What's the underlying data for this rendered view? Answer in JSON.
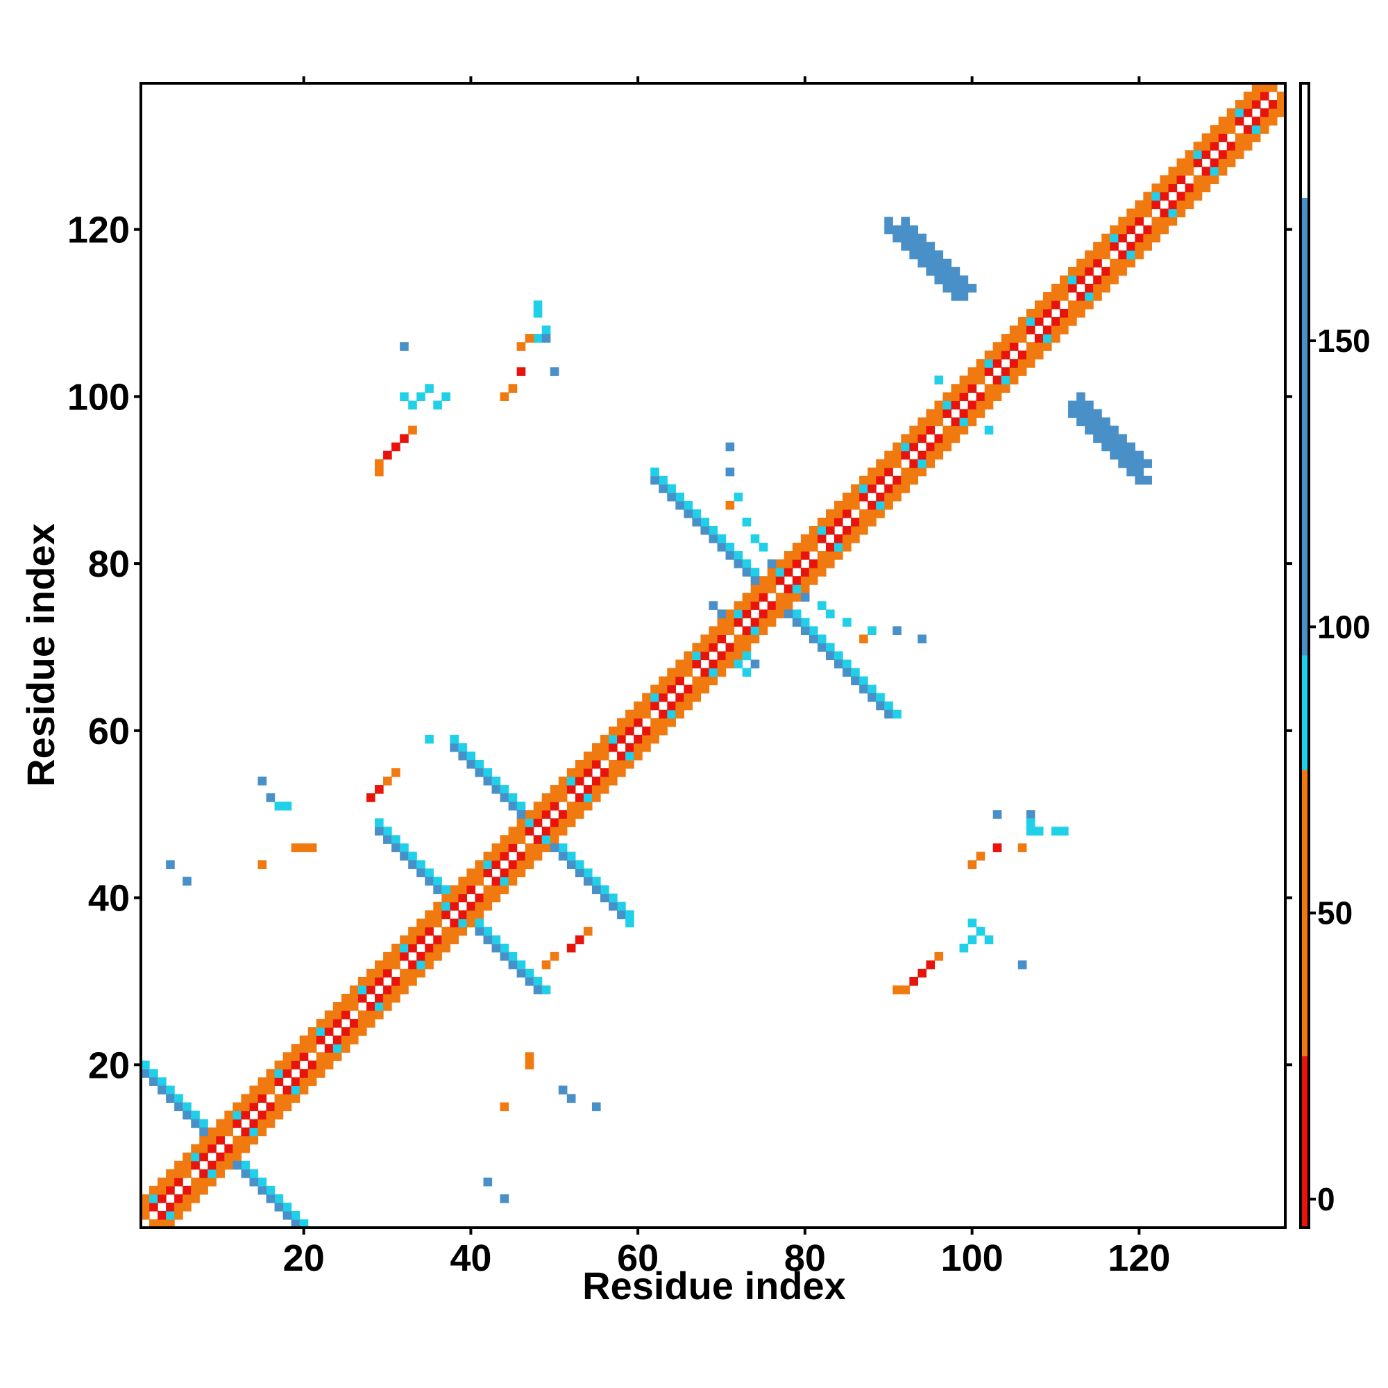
{
  "chart_data": {
    "type": "heatmap",
    "title": "",
    "xlabel": "Residue index",
    "ylabel": "Residue index",
    "xlim": [
      1,
      137
    ],
    "ylim": [
      1,
      137
    ],
    "x_ticks": [
      20,
      40,
      60,
      80,
      100,
      120
    ],
    "y_ticks": [
      20,
      40,
      60,
      80,
      100,
      120
    ],
    "grid": false,
    "colorbar": {
      "ticks": [
        0,
        50,
        100,
        150
      ],
      "range": [
        -5,
        195
      ],
      "bands": [
        {
          "from": -5,
          "to": 25,
          "color": "#e8140c"
        },
        {
          "from": 25,
          "to": 75,
          "color": "#f07a10"
        },
        {
          "from": 75,
          "to": 95,
          "color": "#20d0e8"
        },
        {
          "from": 95,
          "to": 175,
          "color": "#4a90c8"
        },
        {
          "from": 175,
          "to": 195,
          "color": "#ffffff"
        }
      ]
    },
    "diagonal": {
      "from": 1,
      "to": 137,
      "value": 180
    },
    "pattern_series": [
      {
        "kind": "diagonal-band",
        "x_range": [
          1,
          137
        ],
        "offsets": [
          1,
          2,
          3
        ],
        "values": [
          10,
          45,
          40
        ]
      },
      {
        "kind": "antiparallel",
        "x_range": [
          1,
          18
        ],
        "sum": 20,
        "value": 135
      },
      {
        "kind": "antiparallel",
        "x_range": [
          30,
          48
        ],
        "sum": 77,
        "value": 130
      },
      {
        "kind": "antiparallel",
        "x_range": [
          38,
          58
        ],
        "sum": 96,
        "value": 130
      },
      {
        "kind": "antiparallel",
        "x_range": [
          70,
          90
        ],
        "sum": 152,
        "value": 120
      },
      {
        "kind": "antiparallel",
        "x_range": [
          92,
          99
        ],
        "sum": 212,
        "value": 140
      },
      {
        "kind": "antiparallel",
        "x_range": [
          112,
          120
        ],
        "sum": 210,
        "value": 140
      }
    ],
    "points": [
      [
        42,
        6,
        150
      ],
      [
        44,
        4,
        150
      ],
      [
        44,
        15,
        40
      ],
      [
        47,
        20,
        45
      ],
      [
        47,
        21,
        45
      ],
      [
        51,
        17,
        140
      ],
      [
        52,
        16,
        140
      ],
      [
        55,
        15,
        150
      ],
      [
        29,
        91,
        50
      ],
      [
        29,
        92,
        50
      ],
      [
        30,
        93,
        20
      ],
      [
        31,
        94,
        20
      ],
      [
        32,
        95,
        10
      ],
      [
        33,
        96,
        40
      ],
      [
        32,
        100,
        90
      ],
      [
        33,
        99,
        85
      ],
      [
        34,
        100,
        90
      ],
      [
        35,
        101,
        90
      ],
      [
        36,
        99,
        90
      ],
      [
        37,
        100,
        85
      ],
      [
        32,
        106,
        150
      ],
      [
        44,
        100,
        40
      ],
      [
        45,
        101,
        40
      ],
      [
        46,
        103,
        10
      ],
      [
        46,
        106,
        45
      ],
      [
        48,
        107,
        90
      ],
      [
        49,
        108,
        90
      ],
      [
        48,
        110,
        90
      ],
      [
        48,
        111,
        90
      ],
      [
        49,
        107,
        150
      ],
      [
        50,
        103,
        150
      ],
      [
        47,
        107,
        45
      ],
      [
        4,
        44,
        140
      ],
      [
        6,
        42,
        150
      ],
      [
        15,
        44,
        40
      ],
      [
        15,
        54,
        150
      ],
      [
        16,
        52,
        150
      ],
      [
        17,
        51,
        90
      ],
      [
        18,
        51,
        90
      ],
      [
        19,
        46,
        45
      ],
      [
        20,
        46,
        45
      ],
      [
        21,
        46,
        45
      ],
      [
        28,
        52,
        10
      ],
      [
        29,
        53,
        10
      ],
      [
        30,
        54,
        40
      ],
      [
        31,
        55,
        40
      ],
      [
        35,
        59,
        90
      ],
      [
        49,
        32,
        40
      ],
      [
        50,
        33,
        40
      ],
      [
        52,
        34,
        10
      ],
      [
        53,
        35,
        10
      ],
      [
        54,
        36,
        40
      ],
      [
        59,
        37,
        90
      ],
      [
        91,
        29,
        50
      ],
      [
        92,
        29,
        50
      ],
      [
        93,
        30,
        20
      ],
      [
        94,
        31,
        20
      ],
      [
        95,
        32,
        10
      ],
      [
        96,
        33,
        40
      ],
      [
        99,
        34,
        90
      ],
      [
        100,
        35,
        90
      ],
      [
        101,
        36,
        90
      ],
      [
        100,
        37,
        85
      ],
      [
        102,
        35,
        90
      ],
      [
        100,
        44,
        40
      ],
      [
        101,
        45,
        40
      ],
      [
        103,
        46,
        10
      ],
      [
        106,
        46,
        45
      ],
      [
        107,
        48,
        90
      ],
      [
        108,
        48,
        90
      ],
      [
        110,
        48,
        90
      ],
      [
        111,
        48,
        90
      ],
      [
        103,
        50,
        150
      ],
      [
        107,
        50,
        150
      ],
      [
        107,
        49,
        90
      ],
      [
        106,
        32,
        150
      ],
      [
        71,
        94,
        150
      ],
      [
        71,
        91,
        140
      ],
      [
        72,
        88,
        90
      ],
      [
        71,
        87,
        45
      ],
      [
        73,
        85,
        90
      ],
      [
        74,
        83,
        90
      ],
      [
        75,
        82,
        90
      ],
      [
        76,
        80,
        140
      ],
      [
        94,
        71,
        150
      ],
      [
        91,
        72,
        140
      ],
      [
        88,
        72,
        90
      ],
      [
        87,
        71,
        45
      ],
      [
        85,
        73,
        90
      ],
      [
        83,
        74,
        90
      ],
      [
        82,
        75,
        90
      ],
      [
        80,
        76,
        140
      ],
      [
        69,
        75,
        140
      ],
      [
        70,
        74,
        140
      ],
      [
        72,
        68,
        90
      ],
      [
        73,
        69,
        90
      ],
      [
        74,
        68,
        150
      ],
      [
        73,
        67,
        90
      ],
      [
        63,
        66,
        90
      ],
      [
        64,
        66,
        90
      ],
      [
        66,
        63,
        90
      ],
      [
        67,
        64,
        90
      ],
      [
        96,
        102,
        90
      ],
      [
        102,
        96,
        90
      ]
    ],
    "series": []
  }
}
